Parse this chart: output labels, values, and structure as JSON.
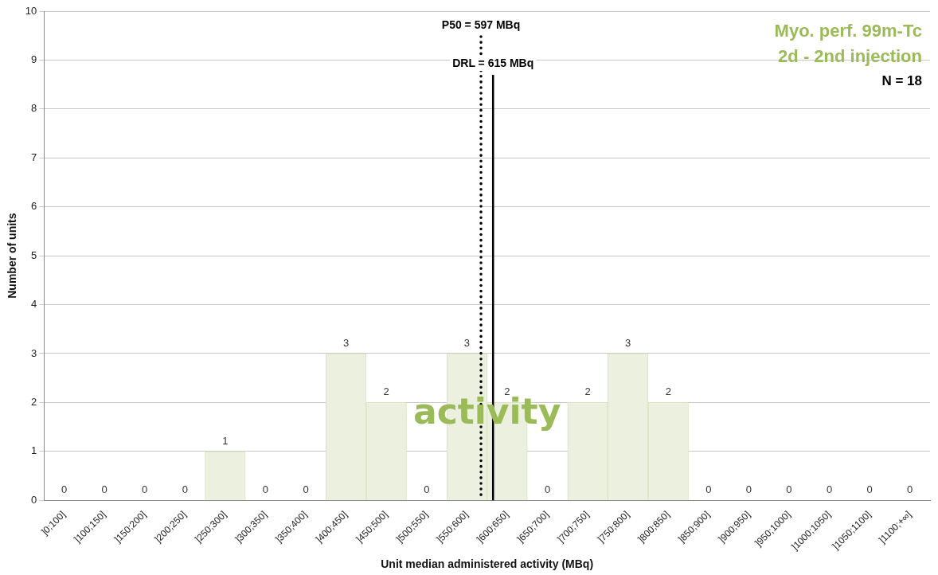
{
  "chart_data": {
    "type": "bar",
    "title": "Myo. perf. 99m-Tc",
    "subtitle": "2d - 2nd injection",
    "xlabel": "Unit median administered activity (MBq)",
    "ylabel": "Number of units",
    "categories": [
      "]0;100]",
      "]100;150]",
      "]150;200]",
      "]200;250]",
      "]250;300]",
      "]300;350]",
      "]350;400]",
      "]400;450]",
      "]450;500]",
      "]500;550]",
      "]550;600]",
      "]600;650]",
      "]650;700]",
      "]700;750]",
      "]750;800]",
      "]800;850]",
      "]850;900]",
      "]900;950]",
      "]950;1000]",
      "]1000;1050]",
      "]1050;1100]",
      "]1100;+∞]"
    ],
    "values": [
      0,
      0,
      0,
      0,
      1,
      0,
      0,
      3,
      2,
      0,
      3,
      2,
      0,
      2,
      3,
      2,
      0,
      0,
      0,
      0,
      0,
      0
    ],
    "color": "#ebf1de",
    "ylim": [
      0,
      10
    ],
    "yticks": [
      0,
      1,
      2,
      3,
      4,
      5,
      6,
      7,
      8,
      9,
      10
    ],
    "grid": "y",
    "legend": false,
    "data_labels": true,
    "ref_lines": [
      {
        "axis": "x",
        "value": "]550;600]",
        "label": "P50 = 597 MBq",
        "line_style": "dotted",
        "color": "#000000"
      },
      {
        "axis": "x",
        "value": "]600;650]",
        "label": "DRL = 615 MBq",
        "line_style": "solid",
        "color": "#000000"
      }
    ],
    "annotations": [
      "N = 18",
      "activity"
    ]
  }
}
